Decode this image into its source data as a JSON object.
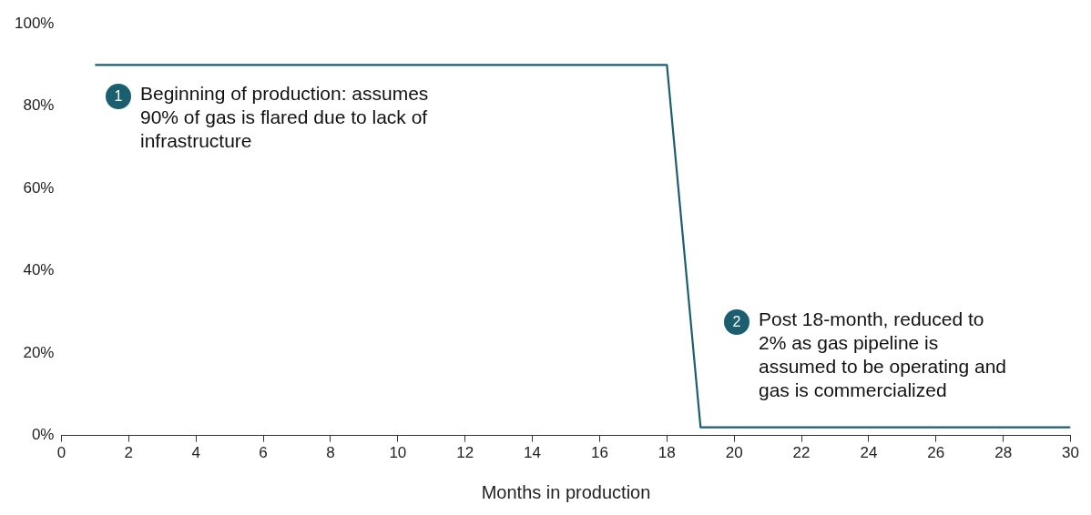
{
  "chart_data": {
    "type": "line",
    "xlabel": "Months in production",
    "x": [
      1,
      18,
      19,
      30
    ],
    "series": [
      {
        "color": "#1b5e6f",
        "values": [
          90,
          90,
          2,
          2
        ]
      }
    ],
    "xlim": [
      0,
      30
    ],
    "xticks": [
      0,
      2,
      4,
      6,
      8,
      10,
      12,
      14,
      16,
      18,
      20,
      22,
      24,
      26,
      28,
      30
    ],
    "ylim": [
      0,
      100
    ],
    "yticks": [
      {
        "value": 0,
        "label": "0%"
      },
      {
        "value": 20,
        "label": "20%"
      },
      {
        "value": 40,
        "label": "40%"
      },
      {
        "value": 60,
        "label": "60%"
      },
      {
        "value": 80,
        "label": "80%"
      },
      {
        "value": 100,
        "label": "100%"
      }
    ],
    "grid": false,
    "legend": false,
    "marker": "none",
    "line_style": "solid",
    "annotations": [
      "1",
      "Beginning of production: assumes 90% of gas is flared due to lack of infrastructure",
      "2",
      "Post 18-month, reduced to 2% as gas pipeline is assumed to be operating and gas is commercialized"
    ]
  }
}
